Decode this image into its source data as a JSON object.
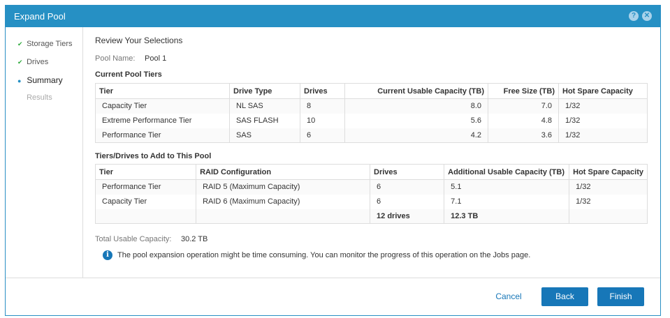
{
  "title": "Expand Pool",
  "header_icons": [
    "help-icon",
    "close-icon"
  ],
  "steps": [
    {
      "label": "Storage Tiers",
      "state": "done"
    },
    {
      "label": "Drives",
      "state": "done"
    },
    {
      "label": "Summary",
      "state": "current"
    },
    {
      "label": "Results",
      "state": "pending"
    }
  ],
  "heading": "Review Your Selections",
  "pool_name_label": "Pool Name:",
  "pool_name": "Pool 1",
  "current": {
    "title": "Current Pool Tiers",
    "headers": [
      "Tier",
      "Drive Type",
      "Drives",
      "Current Usable Capacity (TB)",
      "Free Size (TB)",
      "Hot Spare Capacity"
    ],
    "rows": [
      [
        "Capacity Tier",
        "NL SAS",
        "8",
        "8.0",
        "7.0",
        "1/32"
      ],
      [
        "Extreme Performance Tier",
        "SAS FLASH",
        "10",
        "5.6",
        "4.8",
        "1/32"
      ],
      [
        "Performance Tier",
        "SAS",
        "6",
        "4.2",
        "3.6",
        "1/32"
      ]
    ]
  },
  "add": {
    "title": "Tiers/Drives to Add to This Pool",
    "headers": [
      "Tier",
      "RAID Configuration",
      "Drives",
      "Additional Usable Capacity (TB)",
      "Hot Spare Capacity"
    ],
    "rows": [
      [
        "Performance Tier",
        "RAID 5 (Maximum Capacity)",
        "6",
        "5.1",
        "1/32"
      ],
      [
        "Capacity Tier",
        "RAID 6 (Maximum Capacity)",
        "6",
        "7.1",
        "1/32"
      ]
    ],
    "total": {
      "drives": "12 drives",
      "capacity": "12.3 TB"
    }
  },
  "total_label": "Total Usable Capacity:",
  "total_value": "30.2 TB",
  "info": "The pool expansion operation might be time consuming. You can monitor the progress of this operation on the Jobs page.",
  "buttons": {
    "cancel": "Cancel",
    "back": "Back",
    "finish": "Finish"
  },
  "colors": {
    "header": "#2690c4",
    "primary": "#1777b8",
    "check": "#2eaa3c"
  }
}
